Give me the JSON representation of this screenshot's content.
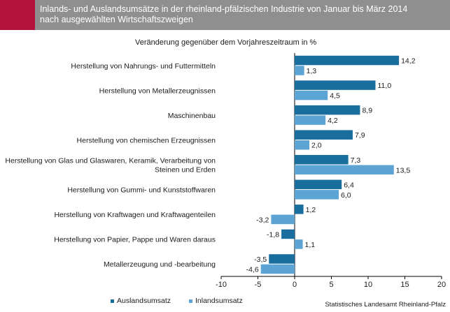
{
  "header": {
    "title": "Inlands- und Auslandsumsätze in der rheinland-pfälzischen Industrie von Januar bis März 2014\nnach ausgewählten Wirtschaftszweigen",
    "accent_color": "#b3143c",
    "background_color": "#8f8f8f"
  },
  "chart_data": {
    "type": "bar",
    "orientation": "horizontal",
    "subtitle": "Veränderung gegenüber dem Vorjahreszeitraum  in %",
    "categories": [
      [
        "Herstellung von Nahrungs- und Futtermitteln"
      ],
      [
        "Herstellung von Metallerzeugnissen"
      ],
      [
        "Maschinenbau"
      ],
      [
        "Herstellung von chemischen Erzeugnissen"
      ],
      [
        "Herstellung von Glas und Glaswaren, Keramik, Verarbeitung von",
        "Steinen und Erden"
      ],
      [
        "Herstellung von Gummi- und Kunststoffwaren"
      ],
      [
        "Herstellung von Kraftwagen und Kraftwagenteilen"
      ],
      [
        "Herstellung von Papier, Pappe und Waren daraus"
      ],
      [
        "Metallerzeugung und -bearbeitung"
      ]
    ],
    "series": [
      {
        "name": "Auslandsumsatz",
        "color": "#1a6e9e",
        "values": [
          14.2,
          11.0,
          8.9,
          7.9,
          7.3,
          6.4,
          1.2,
          -1.8,
          -3.5
        ],
        "labels": [
          "14,2",
          "11,0",
          "8,9",
          "7,9",
          "7,3",
          "6,4",
          "1,2",
          "-1,8",
          "-3,5"
        ]
      },
      {
        "name": "Inlandsumsatz",
        "color": "#5ba4d4",
        "values": [
          1.3,
          4.5,
          4.2,
          2.0,
          13.5,
          6.0,
          -3.2,
          1.1,
          -4.6
        ],
        "labels": [
          "1,3",
          "4,5",
          "4,2",
          "2,0",
          "13,5",
          "6,0",
          "-3,2",
          "1,1",
          "-4,6"
        ]
      }
    ],
    "xlim": [
      -10,
      20
    ],
    "xticks": [
      -10,
      -5,
      0,
      5,
      10,
      15,
      20
    ],
    "xtick_labels": [
      "-10",
      "-5",
      "0",
      "5",
      "10",
      "15",
      "20"
    ],
    "legend_position": "bottom"
  },
  "source": "Statistisches Landesamt Rheinland-Pfalz"
}
